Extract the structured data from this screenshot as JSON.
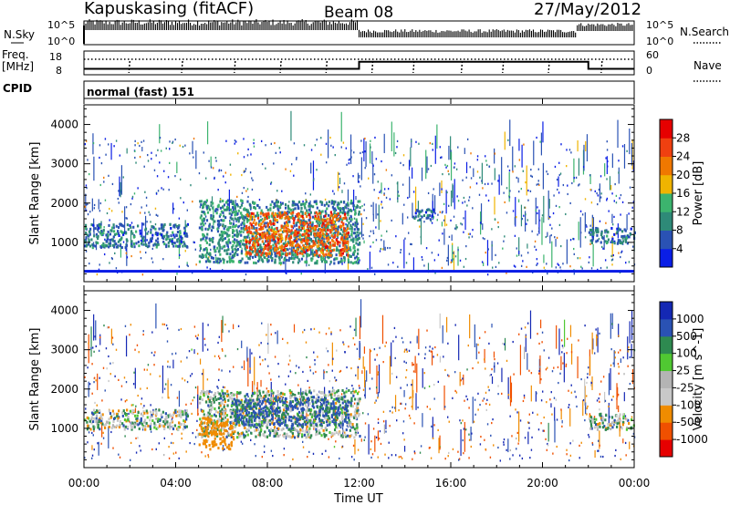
{
  "header": {
    "station": "Kapuskasing (fitACF)",
    "beam": "Beam 08",
    "date": "27/May/2012"
  },
  "strip": {
    "nsky_label": "N.Sky",
    "nsky_ticks": [
      "10^5",
      "10^0"
    ],
    "nsearch_label": "N.Search",
    "nsearch_ticks": [
      "10^5",
      "10^0"
    ],
    "freq_label": "Freq.",
    "freq_unit": "[MHz]",
    "freq_ticks": [
      "18",
      "8"
    ],
    "nave_label": "Nave",
    "nave_ticks": [
      "60",
      "0"
    ],
    "cpid_label": "CPID",
    "cpid_value": "normal (fast) 151"
  },
  "colors": {
    "power": [
      "#0a1ee6",
      "#2a52b4",
      "#2e8a78",
      "#3cb46e",
      "#f0b400",
      "#f07800",
      "#f04010",
      "#e60000"
    ],
    "velocity": [
      "#e60000",
      "#f05000",
      "#f08c00",
      "#c8c8c8",
      "#b4b4b4",
      "#50c832",
      "#2e8a50",
      "#2a52b4",
      "#1428b4"
    ]
  },
  "chart_data": [
    {
      "type": "heatmap",
      "panel": "power",
      "ylabel": "Slant Range [km]",
      "yticks": [
        "1000",
        "2000",
        "3000",
        "4000"
      ],
      "ylim": [
        0,
        4500
      ],
      "xlim": [
        "00:00",
        "24:00"
      ],
      "colorbar": {
        "label": "Power [dB]",
        "ticks": [
          "4",
          "8",
          "12",
          "16",
          "20",
          "24",
          "28"
        ],
        "range": [
          0,
          32
        ]
      },
      "regions": [
        {
          "t0": 0.0,
          "t1": 4.5,
          "r0": 900,
          "r1": 1500,
          "value": 8
        },
        {
          "t0": 5.0,
          "t1": 12.0,
          "r0": 500,
          "r1": 2100,
          "value": 10
        },
        {
          "t0": 7.0,
          "t1": 11.5,
          "r0": 700,
          "r1": 1800,
          "value": 24
        },
        {
          "t0": 14.3,
          "t1": 15.3,
          "r0": 1600,
          "r1": 1900,
          "value": 8
        },
        {
          "t0": 22.0,
          "t1": 24.0,
          "r0": 1000,
          "r1": 1400,
          "value": 8
        }
      ]
    },
    {
      "type": "heatmap",
      "panel": "velocity",
      "ylabel": "Slant Range [km]",
      "yticks": [
        "1000",
        "2000",
        "3000",
        "4000"
      ],
      "ylim": [
        0,
        4500
      ],
      "xlim": [
        "00:00",
        "24:00"
      ],
      "xticks": [
        "00:00",
        "04:00",
        "08:00",
        "12:00",
        "16:00",
        "20:00",
        "00:00"
      ],
      "xlabel": "Time UT",
      "colorbar": {
        "label": "Velocity [m s^-1]",
        "ticks": [
          "1000",
          "500",
          "100",
          "25",
          "-25",
          "-100",
          "-500",
          "-1000"
        ]
      },
      "regions": [
        {
          "t0": 0.0,
          "t1": 4.5,
          "r0": 1000,
          "r1": 1500,
          "value": 0
        },
        {
          "t0": 5.0,
          "t1": 12.0,
          "r0": 800,
          "r1": 2000,
          "value": 0
        },
        {
          "t0": 6.5,
          "t1": 11.5,
          "r0": 1100,
          "r1": 1800,
          "value": 150
        },
        {
          "t0": 5.0,
          "t1": 6.5,
          "r0": 500,
          "r1": 1300,
          "value": -300
        },
        {
          "t0": 22.0,
          "t1": 24.0,
          "r0": 1000,
          "r1": 1400,
          "value": 0
        }
      ]
    }
  ],
  "ops": {
    "freq_steps": [
      {
        "t": 0,
        "freq": 10.5
      },
      {
        "t": 12.0,
        "freq": 13.5
      },
      {
        "t": 22.0,
        "freq": 10.5
      }
    ]
  }
}
